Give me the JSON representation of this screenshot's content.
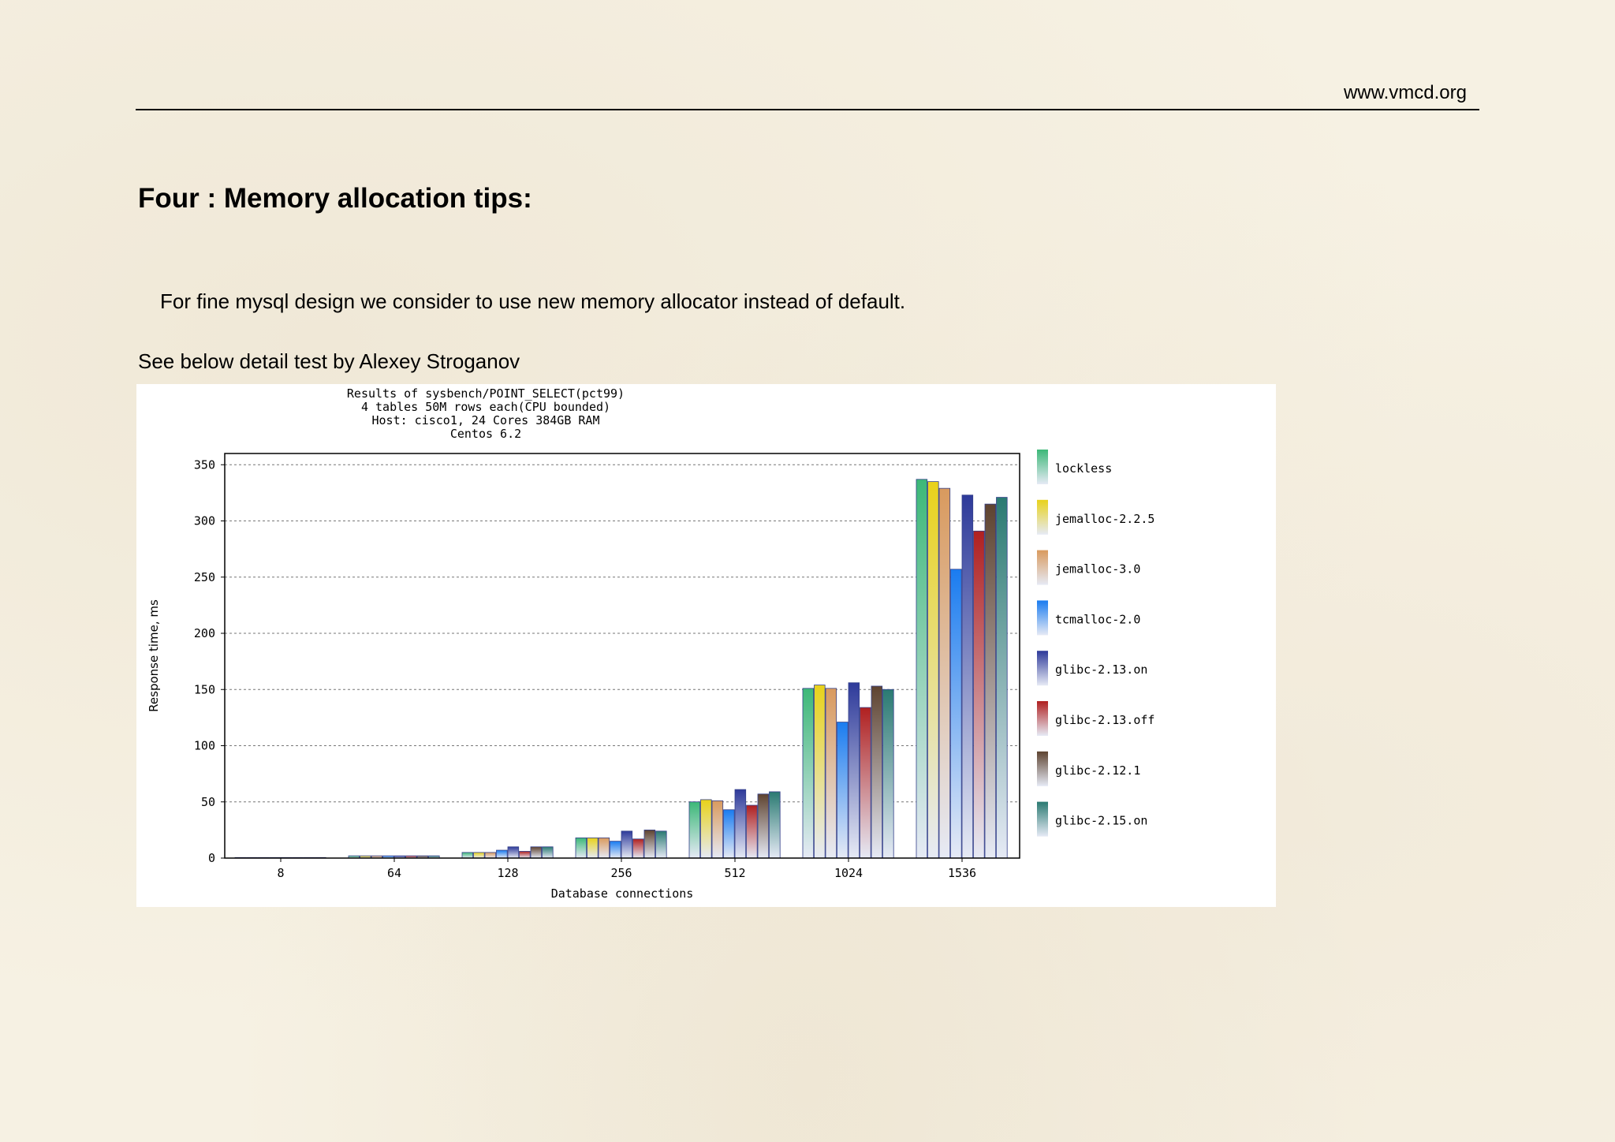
{
  "header": {
    "site": "www.vmcd.org"
  },
  "heading": "Four : Memory allocation tips:",
  "paragraph": "For fine mysql design we consider to use new memory allocator instead of default.",
  "caption": "See below detail test by Alexey Stroganov",
  "chart_data": {
    "type": "bar",
    "title": [
      "Results of sysbench/POINT_SELECT(pct99)",
      "4 tables 50M rows each(CPU bounded)",
      "Host: cisco1, 24 Cores 384GB RAM",
      "Centos 6.2"
    ],
    "xlabel": "Database connections",
    "ylabel": "Response time, ms",
    "ylim": [
      0,
      360
    ],
    "yticks": [
      0,
      50,
      100,
      150,
      200,
      250,
      300,
      350
    ],
    "grid": true,
    "legend_position": "right",
    "categories": [
      "8",
      "64",
      "128",
      "256",
      "512",
      "1024",
      "1536"
    ],
    "series": [
      {
        "name": "lockless",
        "color": "#3cb878",
        "values": [
          0.5,
          2,
          5,
          18,
          50,
          151,
          337
        ]
      },
      {
        "name": "jemalloc-2.2.5",
        "color": "#e8d21a",
        "values": [
          0.5,
          2,
          5,
          18,
          52,
          154,
          335
        ]
      },
      {
        "name": "jemalloc-3.0",
        "color": "#d99a5e",
        "values": [
          0.5,
          2,
          5,
          18,
          51,
          151,
          329
        ]
      },
      {
        "name": "tcmalloc-2.0",
        "color": "#1a7cf0",
        "values": [
          0.5,
          2,
          7,
          15,
          43,
          121,
          257
        ]
      },
      {
        "name": "glibc-2.13.on",
        "color": "#2e3a9a",
        "values": [
          0.5,
          2,
          10,
          24,
          61,
          156,
          323
        ]
      },
      {
        "name": "glibc-2.13.off",
        "color": "#b02020",
        "values": [
          0.5,
          2,
          6,
          17,
          47,
          134,
          291
        ]
      },
      {
        "name": "glibc-2.12.1",
        "color": "#5e4330",
        "values": [
          0.5,
          2,
          10,
          25,
          57,
          153,
          315
        ]
      },
      {
        "name": "glibc-2.15.on",
        "color": "#2a7a72",
        "values": [
          0.5,
          2,
          10,
          24,
          59,
          150,
          321
        ]
      }
    ]
  }
}
